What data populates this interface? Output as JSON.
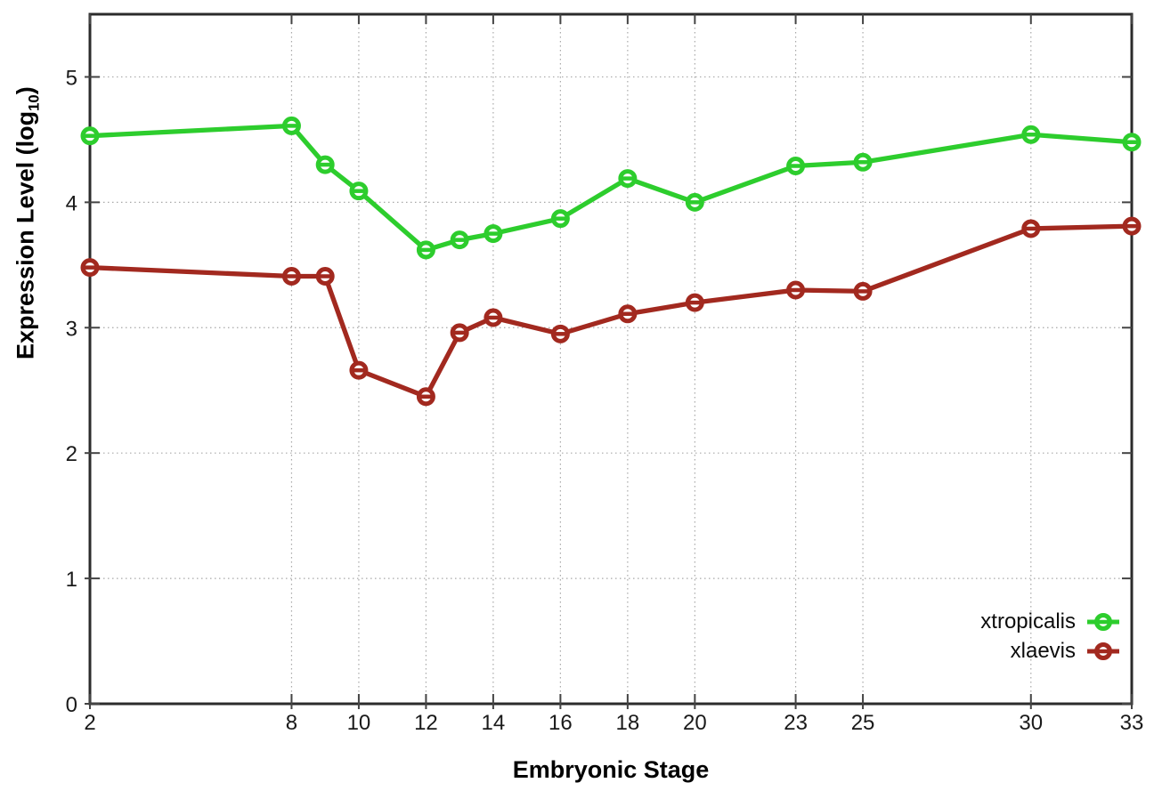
{
  "chart_data": {
    "type": "line",
    "title": "",
    "xlabel": "Embryonic Stage",
    "ylabel": "Expression Level (log10)",
    "ylabel_parts": {
      "prefix": "Expression Level (log",
      "sub": "10",
      "suffix": ")"
    },
    "x": [
      2,
      8,
      9,
      10,
      12,
      13,
      14,
      16,
      18,
      20,
      23,
      25,
      30,
      33
    ],
    "series": [
      {
        "name": "xtropicalis",
        "color": "#2dcd2d",
        "values": [
          4.53,
          4.61,
          4.3,
          4.09,
          3.62,
          3.7,
          3.75,
          3.87,
          4.19,
          4.0,
          4.29,
          4.32,
          4.54,
          4.48
        ]
      },
      {
        "name": "xlaevis",
        "color": "#a2291f",
        "values": [
          3.48,
          3.41,
          3.41,
          2.66,
          2.45,
          2.96,
          3.08,
          2.95,
          3.11,
          3.2,
          3.3,
          3.29,
          3.79,
          3.81
        ]
      }
    ],
    "xlim": [
      2,
      33
    ],
    "ylim": [
      0,
      5.5
    ],
    "xticks": [
      2,
      8,
      10,
      12,
      14,
      16,
      18,
      20,
      23,
      25,
      30,
      33
    ],
    "yticks": [
      0,
      1,
      2,
      3,
      4,
      5
    ],
    "grid": true,
    "legend_position": "bottom-right",
    "marker": "open-circle",
    "styles": {
      "border_color": "#2b2b2b",
      "grid_color": "#a8a8a8",
      "tick_color": "#444444",
      "tick_label_color": "#1a1a1a",
      "background": "#ffffff"
    }
  }
}
